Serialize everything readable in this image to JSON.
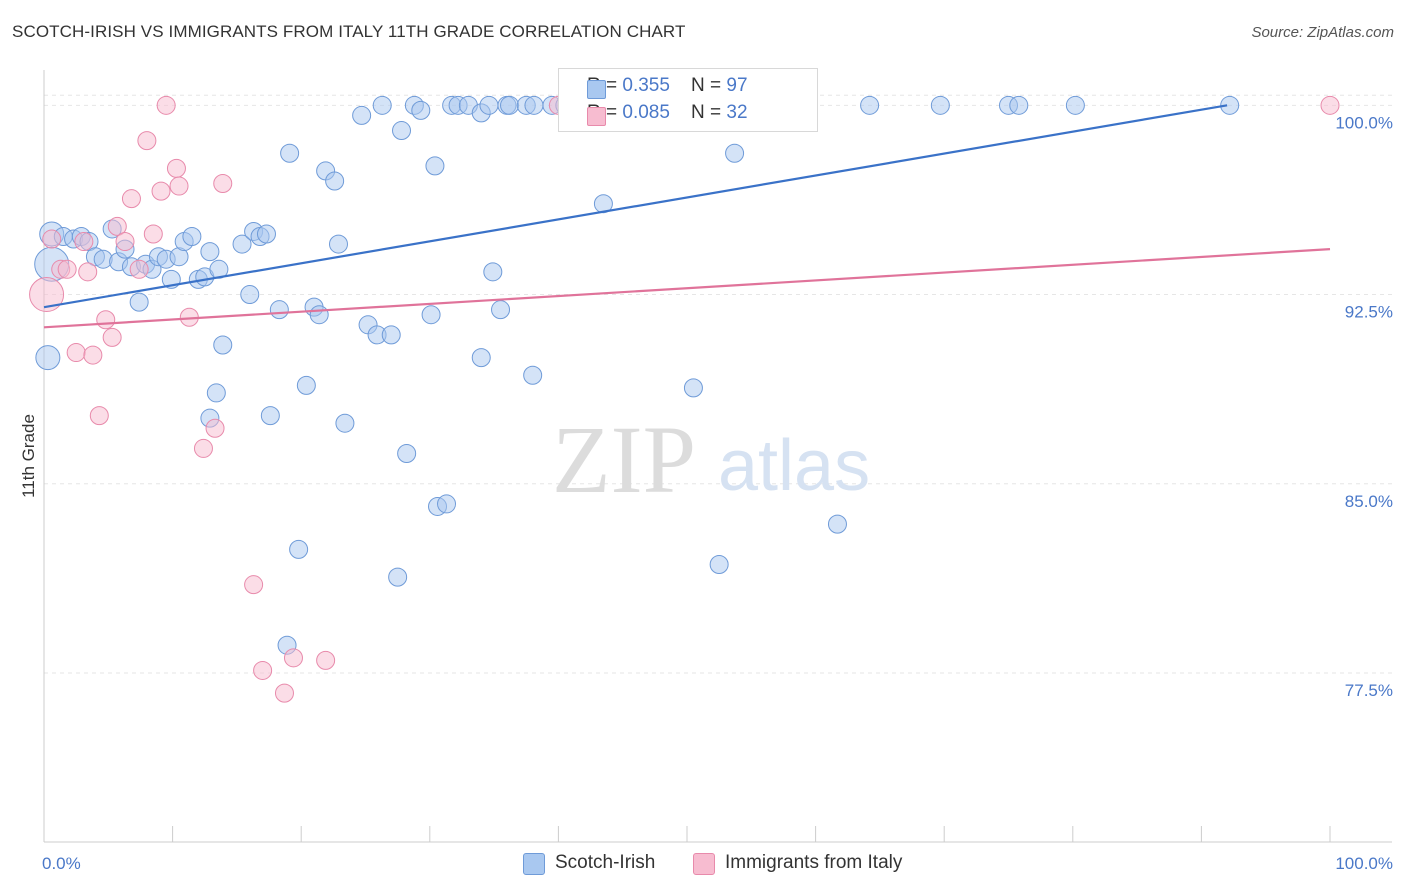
{
  "title": "SCOTCH-IRISH VS IMMIGRANTS FROM ITALY 11TH GRADE CORRELATION CHART",
  "source": "Source: ZipAtlas.com",
  "watermark": {
    "zip": "ZIP",
    "atlas": "atlas"
  },
  "legend_stats": [
    {
      "r_label": "R = ",
      "r_value": "0.355",
      "n_label": "N = ",
      "n_value": "97",
      "color": "#a9c8f0",
      "border": "#6f9bd8"
    },
    {
      "r_label": "R = ",
      "r_value": "0.085",
      "n_label": "N = ",
      "n_value": "32",
      "color": "#f7bcd0",
      "border": "#e88aab"
    }
  ],
  "chart_data": {
    "type": "scatter",
    "title": "SCOTCH-IRISH VS IMMIGRANTS FROM ITALY 11TH GRADE CORRELATION CHART",
    "xlabel": "",
    "ylabel": "11th Grade",
    "xlim": [
      0,
      100
    ],
    "ylim": [
      70.8,
      101.4
    ],
    "x_tick_labels": [
      "0.0%",
      "100.0%"
    ],
    "y_ticks": [
      77.5,
      85.0,
      92.5,
      100.0
    ],
    "y_tick_labels": [
      "77.5%",
      "85.0%",
      "92.5%",
      "100.0%"
    ],
    "grid": true,
    "legend_position": "bottom",
    "series": [
      {
        "name": "Scotch-Irish",
        "color": "#a9c8f0",
        "stroke": "#6f9bd8",
        "trend": {
          "x": [
            0,
            92
          ],
          "y": [
            92.0,
            100.0
          ],
          "color": "#3a72c8"
        },
        "points": [
          {
            "x": 0.6,
            "y": 94.9,
            "s": 2
          },
          {
            "x": 0.6,
            "y": 93.7,
            "s": 3
          },
          {
            "x": 0.3,
            "y": 90.0,
            "s": 2
          },
          {
            "x": 1.5,
            "y": 94.8,
            "s": 1
          },
          {
            "x": 2.3,
            "y": 94.7,
            "s": 1
          },
          {
            "x": 2.9,
            "y": 94.8,
            "s": 1
          },
          {
            "x": 3.5,
            "y": 94.6,
            "s": 1
          },
          {
            "x": 4.0,
            "y": 94.0,
            "s": 1
          },
          {
            "x": 4.6,
            "y": 93.9,
            "s": 1
          },
          {
            "x": 5.3,
            "y": 95.1,
            "s": 1
          },
          {
            "x": 5.8,
            "y": 93.8,
            "s": 1
          },
          {
            "x": 6.3,
            "y": 94.3,
            "s": 1
          },
          {
            "x": 6.8,
            "y": 93.6,
            "s": 1
          },
          {
            "x": 7.4,
            "y": 92.2,
            "s": 1
          },
          {
            "x": 7.9,
            "y": 93.7,
            "s": 1
          },
          {
            "x": 8.4,
            "y": 93.5,
            "s": 1
          },
          {
            "x": 8.9,
            "y": 94.0,
            "s": 1
          },
          {
            "x": 9.5,
            "y": 93.9,
            "s": 1
          },
          {
            "x": 9.9,
            "y": 93.1,
            "s": 1
          },
          {
            "x": 10.5,
            "y": 94.0,
            "s": 1
          },
          {
            "x": 10.9,
            "y": 94.6,
            "s": 1
          },
          {
            "x": 11.5,
            "y": 94.8,
            "s": 1
          },
          {
            "x": 12.0,
            "y": 93.1,
            "s": 1
          },
          {
            "x": 12.5,
            "y": 93.2,
            "s": 1
          },
          {
            "x": 12.9,
            "y": 94.2,
            "s": 1
          },
          {
            "x": 13.6,
            "y": 93.5,
            "s": 1
          },
          {
            "x": 13.9,
            "y": 90.5,
            "s": 1
          },
          {
            "x": 13.4,
            "y": 88.6,
            "s": 1
          },
          {
            "x": 12.9,
            "y": 87.6,
            "s": 1
          },
          {
            "x": 15.4,
            "y": 94.5,
            "s": 1
          },
          {
            "x": 16.3,
            "y": 95.0,
            "s": 1
          },
          {
            "x": 16.8,
            "y": 94.8,
            "s": 1
          },
          {
            "x": 17.3,
            "y": 94.9,
            "s": 1
          },
          {
            "x": 16.0,
            "y": 92.5,
            "s": 1
          },
          {
            "x": 18.3,
            "y": 91.9,
            "s": 1
          },
          {
            "x": 17.6,
            "y": 87.7,
            "s": 1
          },
          {
            "x": 19.1,
            "y": 98.1,
            "s": 1
          },
          {
            "x": 19.8,
            "y": 82.4,
            "s": 1
          },
          {
            "x": 20.4,
            "y": 88.9,
            "s": 1
          },
          {
            "x": 21.0,
            "y": 92.0,
            "s": 1
          },
          {
            "x": 21.4,
            "y": 91.7,
            "s": 1
          },
          {
            "x": 18.9,
            "y": 78.6,
            "s": 1
          },
          {
            "x": 21.9,
            "y": 97.4,
            "s": 1
          },
          {
            "x": 22.6,
            "y": 97.0,
            "s": 1
          },
          {
            "x": 22.9,
            "y": 94.5,
            "s": 1
          },
          {
            "x": 23.4,
            "y": 87.4,
            "s": 1
          },
          {
            "x": 24.7,
            "y": 99.6,
            "s": 1
          },
          {
            "x": 25.2,
            "y": 91.3,
            "s": 1
          },
          {
            "x": 25.9,
            "y": 90.9,
            "s": 1
          },
          {
            "x": 26.3,
            "y": 100.0,
            "s": 1
          },
          {
            "x": 27.0,
            "y": 90.9,
            "s": 1
          },
          {
            "x": 27.5,
            "y": 81.3,
            "s": 1
          },
          {
            "x": 27.8,
            "y": 99.0,
            "s": 1
          },
          {
            "x": 28.2,
            "y": 86.2,
            "s": 1
          },
          {
            "x": 28.8,
            "y": 100.0,
            "s": 1
          },
          {
            "x": 29.3,
            "y": 99.8,
            "s": 1
          },
          {
            "x": 30.1,
            "y": 91.7,
            "s": 1
          },
          {
            "x": 30.4,
            "y": 97.6,
            "s": 1
          },
          {
            "x": 30.6,
            "y": 84.1,
            "s": 1
          },
          {
            "x": 31.3,
            "y": 84.2,
            "s": 1
          },
          {
            "x": 31.7,
            "y": 100.0,
            "s": 1
          },
          {
            "x": 32.2,
            "y": 100.0,
            "s": 1
          },
          {
            "x": 33.0,
            "y": 100.0,
            "s": 1
          },
          {
            "x": 34.0,
            "y": 99.7,
            "s": 1
          },
          {
            "x": 34.6,
            "y": 100.0,
            "s": 1
          },
          {
            "x": 34.9,
            "y": 93.4,
            "s": 1
          },
          {
            "x": 36.0,
            "y": 100.0,
            "s": 1
          },
          {
            "x": 36.2,
            "y": 100.0,
            "s": 1
          },
          {
            "x": 37.5,
            "y": 100.0,
            "s": 1
          },
          {
            "x": 38.1,
            "y": 100.0,
            "s": 1
          },
          {
            "x": 39.5,
            "y": 100.0,
            "s": 1
          },
          {
            "x": 40.5,
            "y": 100.0,
            "s": 1
          },
          {
            "x": 42.0,
            "y": 100.0,
            "s": 1
          },
          {
            "x": 43.2,
            "y": 100.0,
            "s": 1
          },
          {
            "x": 44.5,
            "y": 100.0,
            "s": 1
          },
          {
            "x": 45.0,
            "y": 100.0,
            "s": 1
          },
          {
            "x": 46.5,
            "y": 100.0,
            "s": 1
          },
          {
            "x": 47.2,
            "y": 100.0,
            "s": 1
          },
          {
            "x": 48.5,
            "y": 100.0,
            "s": 1
          },
          {
            "x": 49.0,
            "y": 100.0,
            "s": 1
          },
          {
            "x": 50.0,
            "y": 100.0,
            "s": 1
          },
          {
            "x": 50.2,
            "y": 100.0,
            "s": 1
          },
          {
            "x": 43.5,
            "y": 96.1,
            "s": 1
          },
          {
            "x": 35.5,
            "y": 91.9,
            "s": 1
          },
          {
            "x": 34.0,
            "y": 90.0,
            "s": 1
          },
          {
            "x": 38.0,
            "y": 89.3,
            "s": 1
          },
          {
            "x": 50.5,
            "y": 88.8,
            "s": 1
          },
          {
            "x": 52.5,
            "y": 81.8,
            "s": 1
          },
          {
            "x": 53.7,
            "y": 98.1,
            "s": 1
          },
          {
            "x": 56.0,
            "y": 100.0,
            "s": 1
          },
          {
            "x": 61.7,
            "y": 83.4,
            "s": 1
          },
          {
            "x": 64.2,
            "y": 100.0,
            "s": 1
          },
          {
            "x": 69.7,
            "y": 100.0,
            "s": 1
          },
          {
            "x": 75.0,
            "y": 100.0,
            "s": 1
          },
          {
            "x": 75.8,
            "y": 100.0,
            "s": 1
          },
          {
            "x": 80.2,
            "y": 100.0,
            "s": 1
          },
          {
            "x": 92.2,
            "y": 100.0,
            "s": 1
          }
        ]
      },
      {
        "name": "Immigrants from Italy",
        "color": "#f7bcd0",
        "stroke": "#e88aab",
        "trend": {
          "x": [
            0,
            100
          ],
          "y": [
            91.2,
            94.3
          ],
          "color": "#e0739a"
        },
        "points": [
          {
            "x": 0.2,
            "y": 92.5,
            "s": 3
          },
          {
            "x": 0.6,
            "y": 94.7,
            "s": 1
          },
          {
            "x": 1.3,
            "y": 93.5,
            "s": 1
          },
          {
            "x": 1.8,
            "y": 93.5,
            "s": 1
          },
          {
            "x": 2.5,
            "y": 90.2,
            "s": 1
          },
          {
            "x": 3.1,
            "y": 94.6,
            "s": 1
          },
          {
            "x": 3.4,
            "y": 93.4,
            "s": 1
          },
          {
            "x": 3.8,
            "y": 90.1,
            "s": 1
          },
          {
            "x": 4.3,
            "y": 87.7,
            "s": 1
          },
          {
            "x": 4.8,
            "y": 91.5,
            "s": 1
          },
          {
            "x": 5.3,
            "y": 90.8,
            "s": 1
          },
          {
            "x": 5.7,
            "y": 95.2,
            "s": 1
          },
          {
            "x": 6.3,
            "y": 94.6,
            "s": 1
          },
          {
            "x": 6.8,
            "y": 96.3,
            "s": 1
          },
          {
            "x": 7.4,
            "y": 93.5,
            "s": 1
          },
          {
            "x": 8.0,
            "y": 98.6,
            "s": 1
          },
          {
            "x": 8.5,
            "y": 94.9,
            "s": 1
          },
          {
            "x": 9.1,
            "y": 96.6,
            "s": 1
          },
          {
            "x": 9.5,
            "y": 100.0,
            "s": 1
          },
          {
            "x": 10.3,
            "y": 97.5,
            "s": 1
          },
          {
            "x": 10.5,
            "y": 96.8,
            "s": 1
          },
          {
            "x": 11.3,
            "y": 91.6,
            "s": 1
          },
          {
            "x": 12.4,
            "y": 86.4,
            "s": 1
          },
          {
            "x": 13.3,
            "y": 87.2,
            "s": 1
          },
          {
            "x": 13.9,
            "y": 96.9,
            "s": 1
          },
          {
            "x": 16.3,
            "y": 81.0,
            "s": 1
          },
          {
            "x": 17.0,
            "y": 77.6,
            "s": 1
          },
          {
            "x": 18.7,
            "y": 76.7,
            "s": 1
          },
          {
            "x": 19.4,
            "y": 78.1,
            "s": 1
          },
          {
            "x": 21.9,
            "y": 78.0,
            "s": 1
          },
          {
            "x": 40.0,
            "y": 100.0,
            "s": 1
          },
          {
            "x": 100.0,
            "y": 100.0,
            "s": 1
          }
        ]
      }
    ]
  },
  "bottom_legend": [
    {
      "label": "Scotch-Irish",
      "color": "#a9c8f0",
      "border": "#6f9bd8"
    },
    {
      "label": "Immigrants from Italy",
      "color": "#f7bcd0",
      "border": "#e88aab"
    }
  ]
}
